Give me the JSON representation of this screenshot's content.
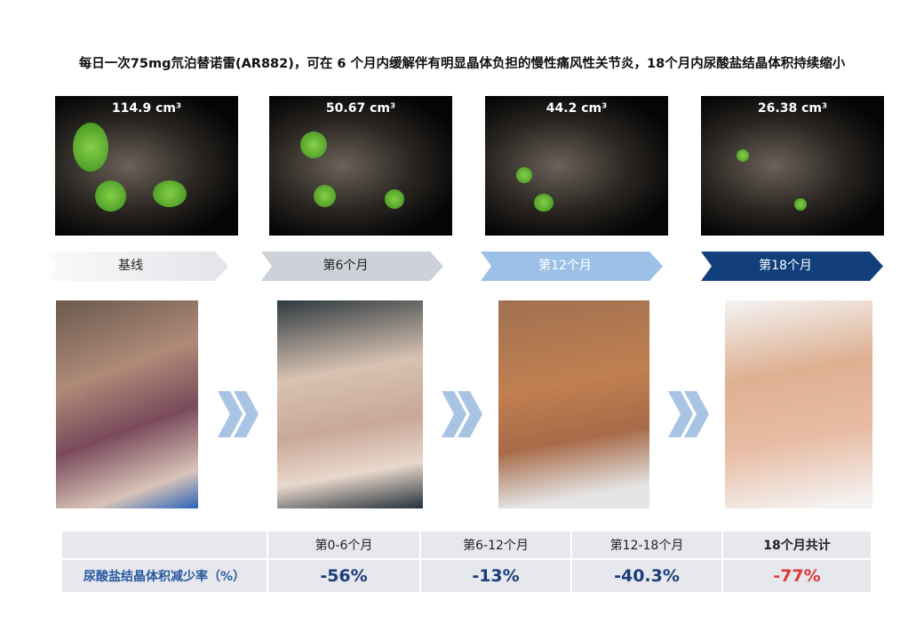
{
  "header": {
    "title": "每日一次75mg氘泊替诺雷(AR882)，可在 6 个月内缓解伴有明显晶体负担的慢性痛风性关节炎，18个月内尿酸盐结晶体积持续缩小"
  },
  "stages": [
    {
      "volume": "114.9 cm³",
      "label": "基线"
    },
    {
      "volume": "50.67 cm³",
      "label": "第6个月"
    },
    {
      "volume": "44.2 cm³",
      "label": "第12个月"
    },
    {
      "volume": "26.38 cm³",
      "label": "第18个月"
    }
  ],
  "table": {
    "header": [
      "第0-6个月",
      "第6-12个月",
      "第12-18个月",
      "18个月共计"
    ],
    "rows": [
      [
        "尿酸盐结晶体积减少率（%）",
        "-56%",
        "-13%",
        "-40.3%",
        "-77%"
      ]
    ]
  }
}
